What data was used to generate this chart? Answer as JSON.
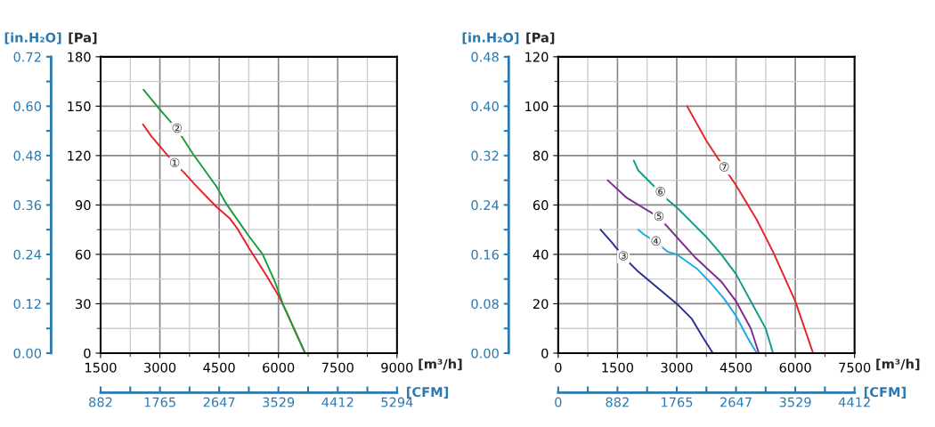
{
  "chart_data": [
    {
      "type": "line",
      "xlabel": "[m³/h]",
      "ylabel": "[Pa]",
      "y2label": "[in.H₂O]",
      "x2label": "[CFM]",
      "xlim": [
        1500,
        9000
      ],
      "xticks": [
        1500,
        3000,
        4500,
        6000,
        7500,
        9000
      ],
      "ylim": [
        0,
        180
      ],
      "yticks": [
        0,
        30,
        60,
        90,
        120,
        150,
        180
      ],
      "y2lim": [
        0,
        0.72
      ],
      "y2ticks": [
        {
          "value": 0,
          "label": "0.00"
        },
        0.12,
        0.24,
        0.36,
        0.48,
        {
          "value": 0.6,
          "label": "0.60"
        },
        0.72
      ],
      "x2lim": [
        882,
        5294
      ],
      "x2ticks": [
        882,
        1765,
        2647,
        3529,
        4412,
        5294
      ],
      "grid": true,
      "legend": false,
      "series": [
        {
          "name": "①",
          "color": "#e8202a",
          "x": [
            2572,
            2775,
            3375,
            3600,
            3900,
            4425,
            4762,
            4950,
            5250,
            5700,
            6000,
            6225,
            6675
          ],
          "values": [
            139,
            132,
            115,
            110,
            102,
            89,
            82,
            76,
            64,
            47,
            35,
            24,
            0
          ]
        },
        {
          "name": "②",
          "color": "#1a9c3e",
          "x": [
            2587,
            2962,
            3435,
            3837,
            4437,
            4700,
            5225,
            5600,
            5900,
            6125,
            6425,
            6675
          ],
          "values": [
            160,
            149,
            136,
            121,
            101,
            90,
            72,
            60,
            44,
            29,
            13,
            0
          ]
        }
      ]
    },
    {
      "type": "line",
      "xlabel": "[m³/h]",
      "ylabel": "[Pa]",
      "y2label": "[in.H₂O]",
      "x2label": "[CFM]",
      "xlim": [
        0,
        7500
      ],
      "xticks": [
        0,
        1500,
        3000,
        4500,
        6000,
        7500
      ],
      "ylim": [
        0,
        120
      ],
      "yticks": [
        0,
        20,
        40,
        60,
        80,
        100,
        120
      ],
      "y2lim": [
        0,
        0.48
      ],
      "y2ticks": [
        {
          "value": 0,
          "label": "0.00"
        },
        0.08,
        0.16,
        0.24,
        0.32,
        {
          "value": 0.4,
          "label": "0.40"
        },
        0.48
      ],
      "x2lim": [
        0,
        4412
      ],
      "x2ticks": [
        0,
        882,
        1765,
        2647,
        3529,
        4412
      ],
      "grid": true,
      "legend": false,
      "series": [
        {
          "name": "③",
          "color": "#2b2f8f",
          "x": [
            1072,
            1350,
            1650,
            2025,
            2475,
            3000,
            3375,
            3675,
            3915
          ],
          "values": [
            50,
            45,
            39,
            33,
            27,
            20,
            14,
            6,
            0
          ]
        },
        {
          "name": "④",
          "color": "#1ba9e6",
          "x": [
            2025,
            2175,
            2475,
            2775,
            3000,
            3525,
            3825,
            4200,
            4500,
            4800,
            5025
          ],
          "values": [
            50,
            48,
            45,
            41,
            40,
            34,
            29,
            22,
            15,
            6,
            0
          ]
        },
        {
          "name": "⑤",
          "color": "#7b2d8e",
          "x": [
            1252,
            1725,
            2550,
            2775,
            3000,
            3450,
            4125,
            4500,
            4875,
            5077
          ],
          "values": [
            70,
            63,
            55,
            51,
            47,
            39,
            29,
            21,
            10,
            0
          ]
        },
        {
          "name": "⑥",
          "color": "#139a8a",
          "x": [
            1912,
            2025,
            2587,
            2775,
            3000,
            3750,
            4125,
            4500,
            4875,
            5250,
            5437
          ],
          "values": [
            78,
            74,
            65,
            62,
            59,
            47,
            40,
            32,
            21,
            10,
            0
          ]
        },
        {
          "name": "⑦",
          "color": "#e8202a",
          "x": [
            3262,
            3750,
            4200,
            4500,
            5025,
            5437,
            6000,
            6450
          ],
          "values": [
            100,
            86,
            75,
            68,
            54,
            41,
            21,
            0
          ]
        }
      ]
    }
  ]
}
